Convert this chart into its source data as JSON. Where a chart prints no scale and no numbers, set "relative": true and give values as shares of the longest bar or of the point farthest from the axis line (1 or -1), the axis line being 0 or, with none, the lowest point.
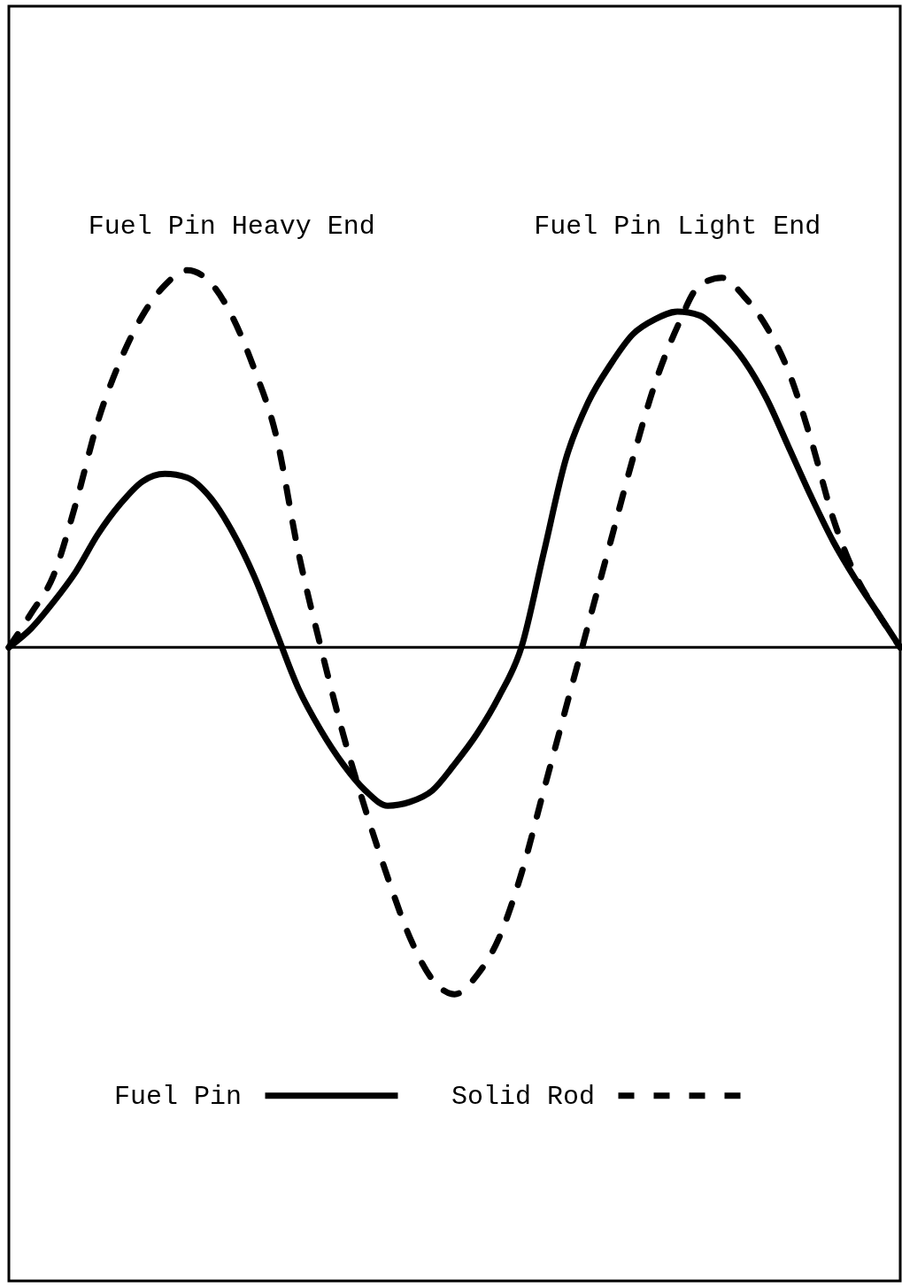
{
  "chart_data": {
    "type": "line",
    "relative": true,
    "tick_labels": false,
    "legend": "bottom",
    "annotations": [
      "Fuel Pin Heavy End",
      "Fuel Pin Light End"
    ],
    "categories": [
      null,
      null,
      null,
      null,
      null,
      null,
      null,
      null,
      null,
      null,
      null,
      null,
      null,
      null,
      null,
      null,
      null,
      null,
      null,
      null,
      null,
      null,
      null,
      null,
      null,
      null,
      null,
      null,
      null,
      null,
      null,
      null,
      null,
      null,
      null,
      null,
      null,
      null,
      null,
      null,
      null
    ],
    "series": [
      {
        "name": "Fuel Pin",
        "color": "#000000",
        "line_style": "solid",
        "values": [
          0,
          0.05,
          0.12,
          0.2,
          0.3,
          0.38,
          0.44,
          0.46,
          0.45,
          0.4,
          0.31,
          0.19,
          0.04,
          -0.11,
          -0.22,
          -0.31,
          -0.38,
          -0.42,
          -0.41,
          -0.38,
          -0.31,
          -0.23,
          -0.13,
          0.0,
          0.25,
          0.5,
          0.65,
          0.75,
          0.83,
          0.87,
          0.89,
          0.88,
          0.83,
          0.76,
          0.66,
          0.53,
          0.4,
          0.28,
          0.18,
          0.09,
          0.0
        ]
      },
      {
        "name": "Solid Rod",
        "color": "#000000",
        "line_style": "dashed",
        "values": [
          0,
          0.09,
          0.19,
          0.38,
          0.6,
          0.76,
          0.88,
          0.96,
          1.0,
          0.97,
          0.88,
          0.74,
          0.56,
          0.25,
          0.0,
          -0.23,
          -0.43,
          -0.61,
          -0.77,
          -0.88,
          -0.92,
          -0.87,
          -0.77,
          -0.6,
          -0.38,
          -0.16,
          0.06,
          0.28,
          0.5,
          0.7,
          0.85,
          0.96,
          0.98,
          0.93,
          0.85,
          0.73,
          0.55,
          0.34,
          0.19,
          0.09,
          0.0
        ]
      }
    ]
  }
}
